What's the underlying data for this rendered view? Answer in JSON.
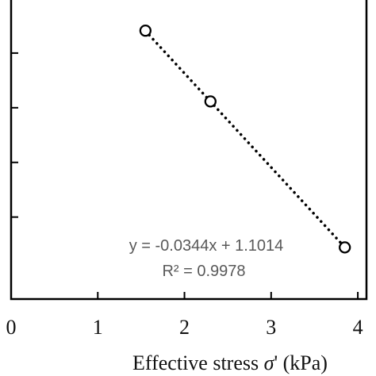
{
  "chart_data": {
    "type": "scatter",
    "xlabel_prefix": "Effective stress ",
    "xlabel_symbol": "σ",
    "xlabel_suffix": "' (kPa)",
    "ylabel": "",
    "x_ticks": [
      "0",
      "1",
      "2",
      "3",
      "4"
    ],
    "xlim": [
      0,
      4.1
    ],
    "ylim": [
      0.95,
      1.06
    ],
    "series": [
      {
        "points": [
          {
            "x": 1.55,
            "y": 1.0482
          },
          {
            "x": 2.3,
            "y": 1.0223
          },
          {
            "x": 3.85,
            "y": 0.9689
          }
        ],
        "marker": "open-circle",
        "color": "#000000"
      }
    ],
    "trendline": {
      "slope": -0.0344,
      "intercept": 1.1014,
      "style": "dotted",
      "x_range": [
        1.55,
        3.85
      ],
      "equation_text": "y = -0.0344x + 1.1014",
      "r2_text": "R² = 0.9978"
    }
  }
}
